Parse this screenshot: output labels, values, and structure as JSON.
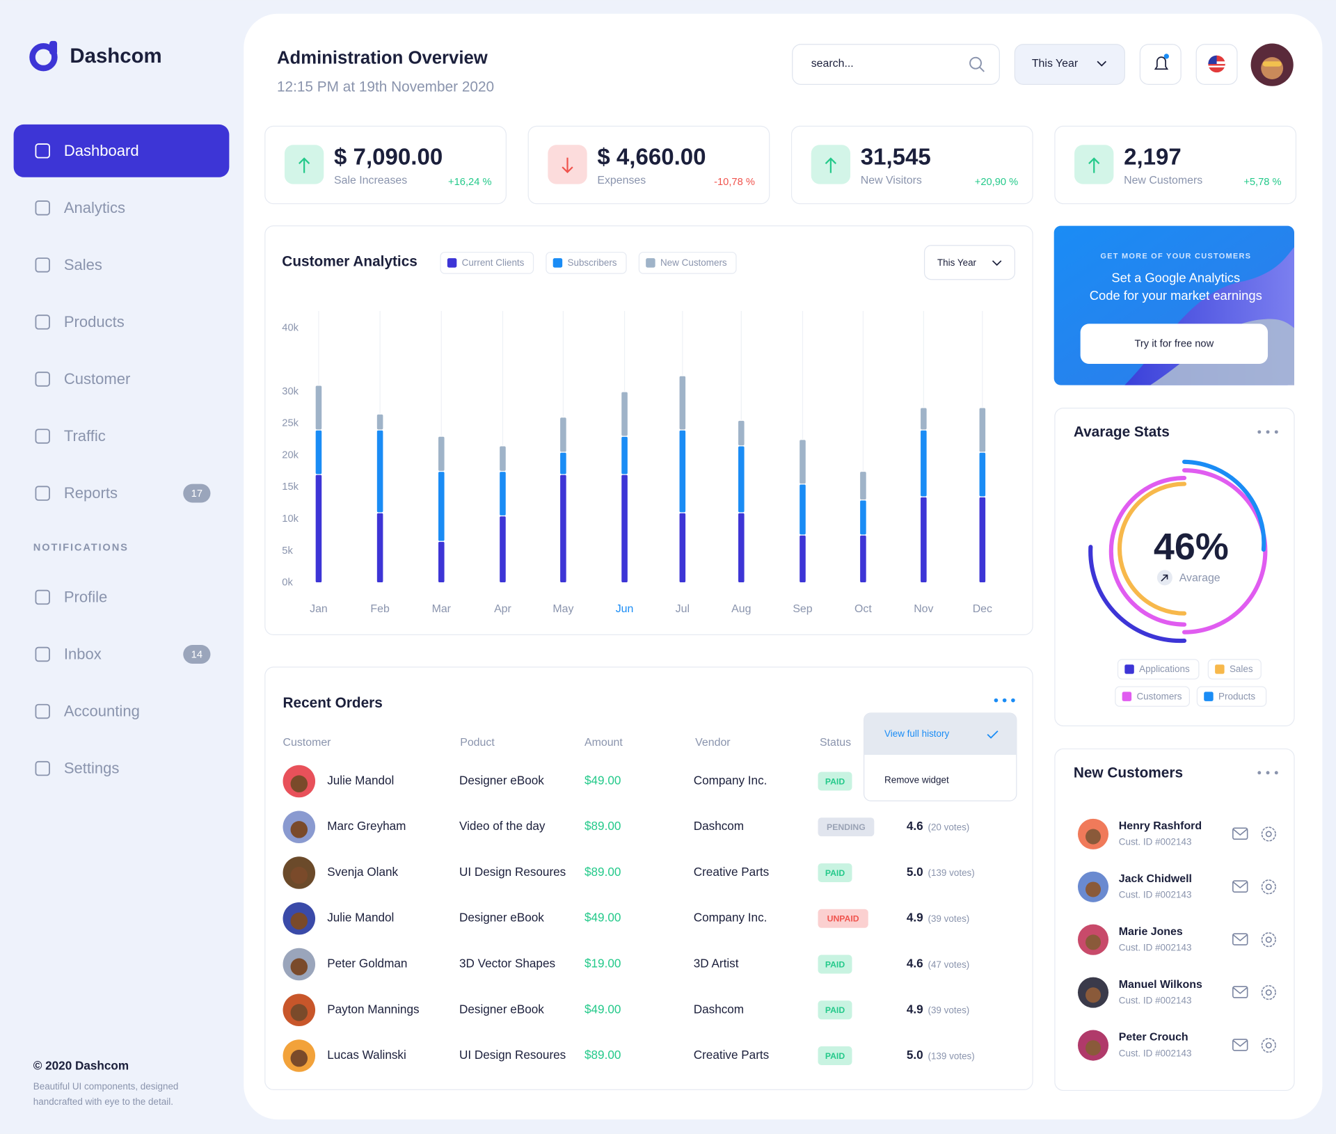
{
  "sidebar": {
    "brand": "Dashcom",
    "nav": [
      {
        "label": "Dashboard"
      },
      {
        "label": "Analytics"
      },
      {
        "label": "Sales"
      },
      {
        "label": "Products"
      },
      {
        "label": "Customer"
      },
      {
        "label": "Traffic"
      },
      {
        "label": "Reports",
        "badge": "17"
      }
    ],
    "section": "NOTIFICATIONS",
    "nav2": [
      {
        "label": "Profile"
      },
      {
        "label": "Inbox",
        "badge": "14"
      },
      {
        "label": "Accounting"
      },
      {
        "label": "Settings"
      }
    ],
    "footer_title": "© 2020 Dashcom",
    "footer_text": [
      "Beautiful UI components, designed",
      "handcrafted with eye to the detail."
    ]
  },
  "header": {
    "title": "Administration Overview",
    "subtitle": "12:15 PM at 19th November 2020",
    "search_placeholder": "search...",
    "period": "This Year"
  },
  "stats": [
    {
      "value": "$ 7,090.00",
      "label": "Sale Increases",
      "change": "+16,24 %",
      "trend": "up"
    },
    {
      "value": "$ 4,660.00",
      "label": "Expenses",
      "change": "-10,78 %",
      "trend": "down"
    },
    {
      "value": "31,545",
      "label": "New Visitors",
      "change": "+20,90 %",
      "trend": "up"
    },
    {
      "value": "2,197",
      "label": "New Customers",
      "change": "+5,78 %",
      "trend": "up"
    }
  ],
  "chart_data": {
    "type": "bar",
    "stacked": true,
    "title": "Customer Analytics",
    "period": "This Year",
    "categories": [
      "Jan",
      "Feb",
      "Mar",
      "Apr",
      "May",
      "Jun",
      "Jul",
      "Aug",
      "Sep",
      "Oct",
      "Nov",
      "Dec"
    ],
    "series": [
      {
        "name": "Current Clients",
        "color": "#3d35d6",
        "values": [
          17000,
          11000,
          6500,
          10500,
          17000,
          17000,
          11000,
          11000,
          7500,
          7500,
          13500,
          13500
        ]
      },
      {
        "name": "Subscribers",
        "color": "#1a8cf5",
        "values": [
          7000,
          13000,
          11000,
          7000,
          3500,
          6000,
          13000,
          10500,
          8000,
          5500,
          10500,
          7000
        ]
      },
      {
        "name": "New Customers",
        "color": "#9fb3c8",
        "values": [
          7000,
          2500,
          5500,
          4000,
          5500,
          7000,
          8500,
          4000,
          7000,
          4500,
          3500,
          7000
        ]
      }
    ],
    "ylim": [
      0,
      40000
    ],
    "yticks": [
      {
        "value": 0,
        "label": "0k"
      },
      {
        "value": 5000,
        "label": "5k"
      },
      {
        "value": 10000,
        "label": "10k"
      },
      {
        "value": 15000,
        "label": "15k"
      },
      {
        "value": 20000,
        "label": "20k"
      },
      {
        "value": 25000,
        "label": "25k"
      },
      {
        "value": 30000,
        "label": "30k"
      },
      {
        "value": 40000,
        "label": "40k"
      }
    ]
  },
  "promo": {
    "kicker": "GET MORE OF YOUR CUSTOMERS",
    "lines": [
      "Set a Google Analytics",
      "Code for your market earnings"
    ],
    "button": "Try it for free now"
  },
  "average_stats": {
    "title": "Avarage Stats",
    "value": "46%",
    "label": "Avarage",
    "legend": [
      {
        "name": "Applications",
        "color": "#3d35d6"
      },
      {
        "name": "Sales",
        "color": "#f7b84b"
      },
      {
        "name": "Customers",
        "color": "#e05cf0"
      },
      {
        "name": "Products",
        "color": "#1a8cf5"
      }
    ]
  },
  "orders": {
    "title": "Recent Orders",
    "columns": [
      "Customer",
      "Poduct",
      "Amount",
      "Vendor",
      "Status"
    ],
    "menu": [
      "View full history",
      "Remove widget"
    ],
    "rows": [
      {
        "customer": "Julie Mandol",
        "product": "Designer eBook",
        "amount": "$49.00",
        "vendor": "Company Inc.",
        "status": "PAID"
      },
      {
        "customer": "Marc Greyham",
        "product": "Video of the day",
        "amount": "$89.00",
        "vendor": "Dashcom",
        "status": "PENDING",
        "rating": "4.6",
        "votes": "(20 votes)"
      },
      {
        "customer": "Svenja Olank",
        "product": "UI Design Resoures",
        "amount": "$89.00",
        "vendor": "Creative Parts",
        "status": "PAID",
        "rating": "5.0",
        "votes": "(139 votes)"
      },
      {
        "customer": "Julie Mandol",
        "product": "Designer eBook",
        "amount": "$49.00",
        "vendor": "Company Inc.",
        "status": "UNPAID",
        "rating": "4.9",
        "votes": "(39 votes)"
      },
      {
        "customer": "Peter Goldman",
        "product": "3D Vector Shapes",
        "amount": "$19.00",
        "vendor": "3D Artist",
        "status": "PAID",
        "rating": "4.6",
        "votes": "(47 votes)"
      },
      {
        "customer": "Payton Mannings",
        "product": "Designer eBook",
        "amount": "$49.00",
        "vendor": "Dashcom",
        "status": "PAID",
        "rating": "4.9",
        "votes": "(39 votes)"
      },
      {
        "customer": "Lucas Walinski",
        "product": "UI Design Resoures",
        "amount": "$89.00",
        "vendor": "Creative Parts",
        "status": "PAID",
        "rating": "5.0",
        "votes": "(139 votes)"
      }
    ]
  },
  "new_customers": {
    "title": "New Customers",
    "rows": [
      {
        "name": "Henry Rashford",
        "id": "Cust. ID #002143"
      },
      {
        "name": "Jack Chidwell",
        "id": "Cust. ID #002143"
      },
      {
        "name": "Marie Jones",
        "id": "Cust. ID #002143"
      },
      {
        "name": "Manuel Wilkons",
        "id": "Cust. ID #002143"
      },
      {
        "name": "Peter Crouch",
        "id": "Cust. ID #002143"
      }
    ]
  }
}
